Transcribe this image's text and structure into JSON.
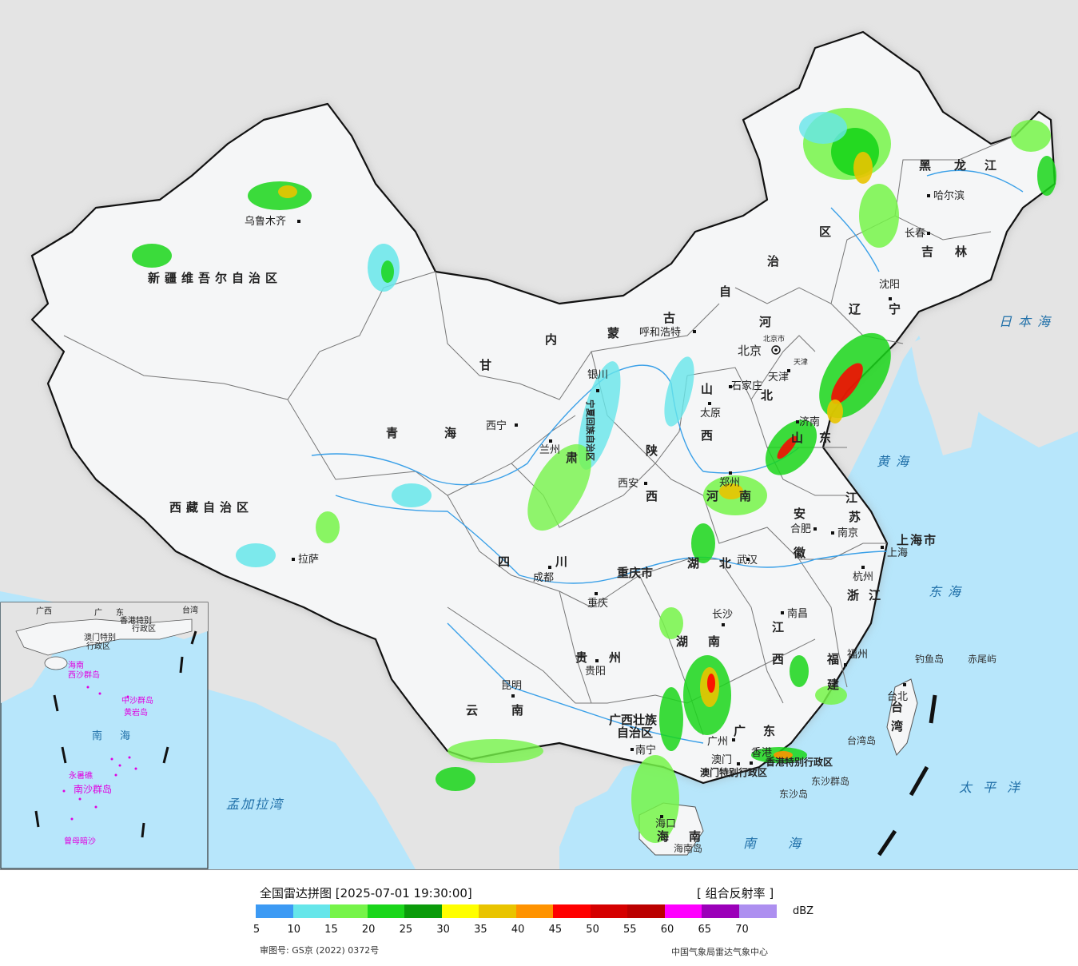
{
  "colors": {
    "ocean": "#b7e6fb",
    "land_china": "#f5f6f7",
    "land_other": "#e4e4e4",
    "border": "#111111",
    "province": "#777777",
    "river": "#3aa0e8"
  },
  "provinces": [
    {
      "name": "新疆维吾尔自治区",
      "key": "xinjiang"
    },
    {
      "name": "西藏自治区",
      "key": "xizang"
    },
    {
      "name": "青",
      "key": "qinghai1"
    },
    {
      "name": "海",
      "key": "qinghai2"
    },
    {
      "name": "甘",
      "key": "gansu1"
    },
    {
      "name": "肃",
      "key": "gansu2"
    },
    {
      "name": "内",
      "key": "nmg1"
    },
    {
      "name": "蒙",
      "key": "nmg2"
    },
    {
      "name": "古",
      "key": "nmg3"
    },
    {
      "name": "自",
      "key": "nmg4"
    },
    {
      "name": "治",
      "key": "nmg5"
    },
    {
      "name": "区",
      "key": "nmg6"
    },
    {
      "name": "黑",
      "key": "hlj1"
    },
    {
      "name": "龙",
      "key": "hlj2"
    },
    {
      "name": "江",
      "key": "hlj3"
    },
    {
      "name": "吉",
      "key": "jl1"
    },
    {
      "name": "林",
      "key": "jl2"
    },
    {
      "name": "辽",
      "key": "ln1"
    },
    {
      "name": "宁",
      "key": "ln2"
    },
    {
      "name": "河",
      "key": "hb1"
    },
    {
      "name": "北",
      "key": "hb2"
    },
    {
      "name": "山",
      "key": "sx1"
    },
    {
      "name": "西",
      "key": "sx2"
    },
    {
      "name": "陕",
      "key": "shx1"
    },
    {
      "name": "西",
      "key": "shx2"
    },
    {
      "name": "河",
      "key": "hn1"
    },
    {
      "name": "南",
      "key": "hn2"
    },
    {
      "name": "山",
      "key": "sd1"
    },
    {
      "name": "东",
      "key": "sd2"
    },
    {
      "name": "江",
      "key": "js1"
    },
    {
      "name": "苏",
      "key": "js2"
    },
    {
      "name": "安",
      "key": "ah1"
    },
    {
      "name": "徽",
      "key": "ah2"
    },
    {
      "name": "浙",
      "key": "zj1"
    },
    {
      "name": "江",
      "key": "zj2"
    },
    {
      "name": "上海市",
      "key": "sh"
    },
    {
      "name": "四",
      "key": "sc1"
    },
    {
      "name": "川",
      "key": "sc2"
    },
    {
      "name": "重庆市",
      "key": "cq"
    },
    {
      "name": "湖",
      "key": "hub1"
    },
    {
      "name": "北",
      "key": "hub2"
    },
    {
      "name": "湖",
      "key": "hun1"
    },
    {
      "name": "南",
      "key": "hun2"
    },
    {
      "name": "江",
      "key": "jx1"
    },
    {
      "name": "西",
      "key": "jx2"
    },
    {
      "name": "福",
      "key": "fj1"
    },
    {
      "name": "建",
      "key": "fj2"
    },
    {
      "name": "贵",
      "key": "gz1"
    },
    {
      "name": "州",
      "key": "gz2"
    },
    {
      "name": "云",
      "key": "yn1"
    },
    {
      "name": "南",
      "key": "yn2"
    },
    {
      "name": "广西壮族",
      "key": "gx1"
    },
    {
      "name": "自治区",
      "key": "gx2"
    },
    {
      "name": "广",
      "key": "gd1"
    },
    {
      "name": "东",
      "key": "gd2"
    },
    {
      "name": "海",
      "key": "hainan1"
    },
    {
      "name": "南",
      "key": "hainan2"
    },
    {
      "name": "台",
      "key": "tw1"
    },
    {
      "name": "湾",
      "key": "tw2"
    },
    {
      "name": "宁夏回族自治区",
      "key": "nx"
    },
    {
      "name": "香港特别行政区",
      "key": "hk"
    },
    {
      "name": "澳门特别行政区",
      "key": "mo"
    }
  ],
  "cities": [
    {
      "name": "乌鲁木齐",
      "key": "wlmq"
    },
    {
      "name": "拉萨",
      "key": "ls"
    },
    {
      "name": "西宁",
      "key": "xn"
    },
    {
      "name": "兰州",
      "key": "lz"
    },
    {
      "name": "银川",
      "key": "yc"
    },
    {
      "name": "呼和浩特",
      "key": "hhht"
    },
    {
      "name": "哈尔滨",
      "key": "heb"
    },
    {
      "name": "长春",
      "key": "cc"
    },
    {
      "name": "沈阳",
      "key": "sy"
    },
    {
      "name": "北京",
      "key": "bj"
    },
    {
      "name": "北京市",
      "key": "bjs"
    },
    {
      "name": "天津",
      "key": "tj"
    },
    {
      "name": "天津",
      "key": "tjs"
    },
    {
      "name": "石家庄",
      "key": "sjz"
    },
    {
      "name": "太原",
      "key": "ty"
    },
    {
      "name": "济南",
      "key": "jn"
    },
    {
      "name": "西安",
      "key": "xa"
    },
    {
      "name": "郑州",
      "key": "zz"
    },
    {
      "name": "南京",
      "key": "nj"
    },
    {
      "name": "合肥",
      "key": "hf"
    },
    {
      "name": "上海",
      "key": "shc"
    },
    {
      "name": "杭州",
      "key": "hz"
    },
    {
      "name": "成都",
      "key": "cd"
    },
    {
      "name": "重庆",
      "key": "cqc"
    },
    {
      "name": "武汉",
      "key": "wh"
    },
    {
      "name": "长沙",
      "key": "csh"
    },
    {
      "name": "南昌",
      "key": "nc"
    },
    {
      "name": "福州",
      "key": "fz"
    },
    {
      "name": "贵阳",
      "key": "gy"
    },
    {
      "name": "昆明",
      "key": "km"
    },
    {
      "name": "南宁",
      "key": "nn"
    },
    {
      "name": "广州",
      "key": "gzc"
    },
    {
      "name": "香港",
      "key": "xg"
    },
    {
      "name": "澳门",
      "key": "am"
    },
    {
      "name": "海口",
      "key": "hk2"
    },
    {
      "name": "台北",
      "key": "tb"
    }
  ],
  "islands": [
    {
      "name": "钓鱼岛",
      "key": "dyd"
    },
    {
      "name": "赤尾屿",
      "key": "cwy"
    },
    {
      "name": "台湾岛",
      "key": "twd"
    },
    {
      "name": "东沙群岛",
      "key": "dsqd"
    },
    {
      "name": "东沙岛",
      "key": "dsd"
    },
    {
      "name": "海南岛",
      "key": "hnd"
    }
  ],
  "seas": [
    {
      "name": "日本海",
      "key": "rbh"
    },
    {
      "name": "黄海",
      "key": "hh"
    },
    {
      "name": "东海",
      "key": "dh"
    },
    {
      "name": "太平洋",
      "key": "tpy"
    },
    {
      "name": "南海",
      "key": "nh"
    },
    {
      "name": "孟加拉湾",
      "key": "mjlw"
    }
  ],
  "inset": {
    "labels": [
      {
        "name": "广",
        "key": "i1"
      },
      {
        "name": "东",
        "key": "i2"
      },
      {
        "name": "台湾",
        "key": "i3"
      },
      {
        "name": "香港特别",
        "key": "i4"
      },
      {
        "name": "行政区",
        "key": "i5"
      },
      {
        "name": "澳门特别",
        "key": "i6"
      },
      {
        "name": "行政区",
        "key": "i7"
      },
      {
        "name": "广西",
        "key": "i8"
      },
      {
        "name": "海南",
        "key": "i9"
      },
      {
        "name": "西沙群岛",
        "key": "i10"
      },
      {
        "name": "中沙群岛",
        "key": "i11"
      },
      {
        "name": "黄岩岛",
        "key": "i12"
      },
      {
        "name": "南",
        "key": "i13"
      },
      {
        "name": "海",
        "key": "i14"
      },
      {
        "name": "永暑礁",
        "key": "i15"
      },
      {
        "name": "南沙群岛",
        "key": "i16"
      },
      {
        "name": "曾母暗沙",
        "key": "i17"
      }
    ]
  },
  "legend": {
    "title": "全国雷达拼图 [2025-07-01 19:30:00]",
    "product": "[ 组合反射率 ]",
    "unit": "dBZ",
    "bins": [
      {
        "color": "#3c9af4"
      },
      {
        "color": "#66e6ea"
      },
      {
        "color": "#76f449"
      },
      {
        "color": "#1ad61a"
      },
      {
        "color": "#0a9b0a"
      },
      {
        "color": "#ffff00"
      },
      {
        "color": "#e9c400"
      },
      {
        "color": "#ff9300"
      },
      {
        "color": "#ff0000"
      },
      {
        "color": "#d50000"
      },
      {
        "color": "#bb0000"
      },
      {
        "color": "#ff00ff"
      },
      {
        "color": "#9b00b9"
      },
      {
        "color": "#ad8ff0"
      }
    ],
    "ticks": [
      "5",
      "10",
      "15",
      "20",
      "25",
      "30",
      "35",
      "40",
      "45",
      "50",
      "55",
      "60",
      "65",
      "70"
    ],
    "approval": "审图号: GS京 (2022) 0372号",
    "source": "中国气象局雷达气象中心"
  }
}
